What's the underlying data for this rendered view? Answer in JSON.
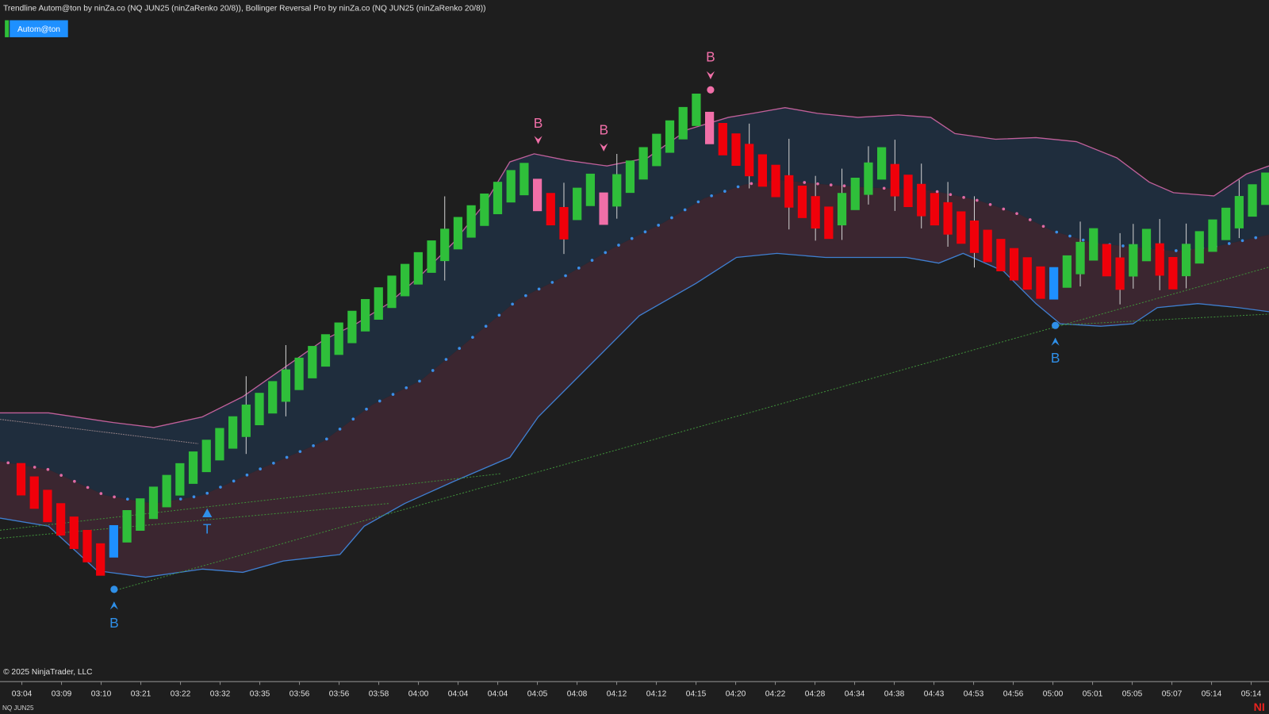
{
  "header": {
    "title": "Trendline Autom@ton by ninZa.co (NQ JUN25 (ninZaRenko 20/8)), Bollinger Reversal Pro by ninZa.co (NQ JUN25 (ninZaRenko 20/8))",
    "button": "Autom@ton"
  },
  "signals": [
    {
      "label": "B"
    },
    {
      "label": "T"
    },
    {
      "label": "B"
    },
    {
      "label": "B"
    },
    {
      "label": "B"
    },
    {
      "label": "B"
    }
  ],
  "copyright": "© 2025 NinjaTrader, LLC",
  "time_axis": {
    "labels": [
      "03:04",
      "03:09",
      "03:10",
      "03:21",
      "03:22",
      "03:32",
      "03:35",
      "03:56",
      "03:56",
      "03:58",
      "04:00",
      "04:04",
      "04:04",
      "04:05",
      "04:08",
      "04:12",
      "04:12",
      "04:15",
      "04:20",
      "04:22",
      "04:28",
      "04:34",
      "04:38",
      "04:43",
      "04:53",
      "04:56",
      "05:00",
      "05:01",
      "05:05",
      "05:07",
      "05:14",
      "05:14"
    ]
  },
  "instrument": "NQ JUN25",
  "watermark": "NI"
}
